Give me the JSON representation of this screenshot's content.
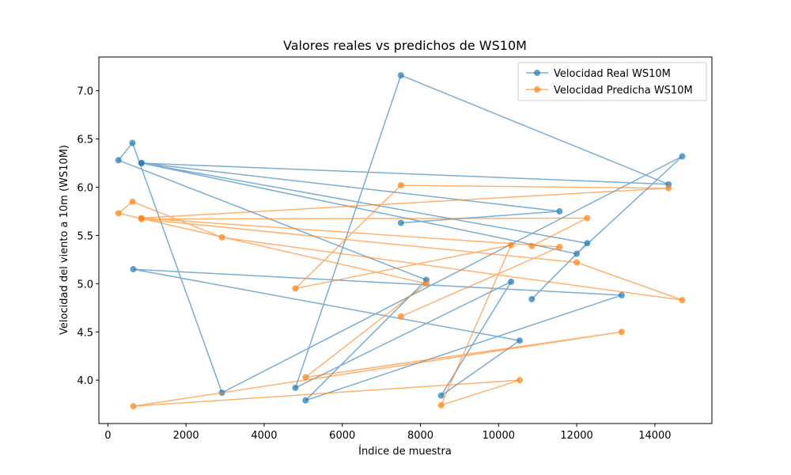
{
  "chart_data": {
    "type": "line",
    "title": "Valores reales vs predichos de WS10M",
    "xlabel": "Índice de muestra",
    "ylabel": "Velocidad del viento a 10m (WS10M)",
    "xlim": [
      -230,
      15460
    ],
    "ylim": [
      3.55,
      7.35
    ],
    "xticks": [
      0,
      2000,
      4000,
      6000,
      8000,
      10000,
      12000,
      14000
    ],
    "yticks": [
      4.0,
      4.5,
      5.0,
      5.5,
      6.0,
      6.5,
      7.0
    ],
    "grid": false,
    "legend_position": "top-right",
    "series": [
      {
        "name": "Velocidad Real WS10M",
        "color": "#1f77b4",
        "x": [
          10850,
          12270,
          860,
          12000,
          14700,
          2920,
          630,
          270,
          8150,
          5060,
          13150,
          650,
          10540,
          8530,
          10320,
          4800,
          7500,
          14350,
          860,
          11560,
          7500
        ],
        "y": [
          4.84,
          5.42,
          6.25,
          5.31,
          6.32,
          3.87,
          6.46,
          6.28,
          5.04,
          3.79,
          4.88,
          5.15,
          4.41,
          3.84,
          5.02,
          3.92,
          7.16,
          6.03,
          6.25,
          5.75,
          5.63
        ]
      },
      {
        "name": "Velocidad Predicha WS10M",
        "color": "#ff7f0e",
        "x": [
          10850,
          12270,
          860,
          12000,
          14700,
          2920,
          630,
          270,
          8150,
          5060,
          13150,
          650,
          10540,
          8530,
          10320,
          4800,
          7500,
          14350,
          860,
          11560,
          7500
        ],
        "y": [
          5.39,
          5.68,
          5.67,
          5.22,
          4.83,
          5.48,
          5.85,
          5.73,
          5.0,
          4.03,
          4.5,
          3.73,
          4.0,
          3.74,
          5.4,
          4.95,
          6.02,
          5.99,
          5.68,
          5.38,
          4.66
        ]
      }
    ]
  }
}
